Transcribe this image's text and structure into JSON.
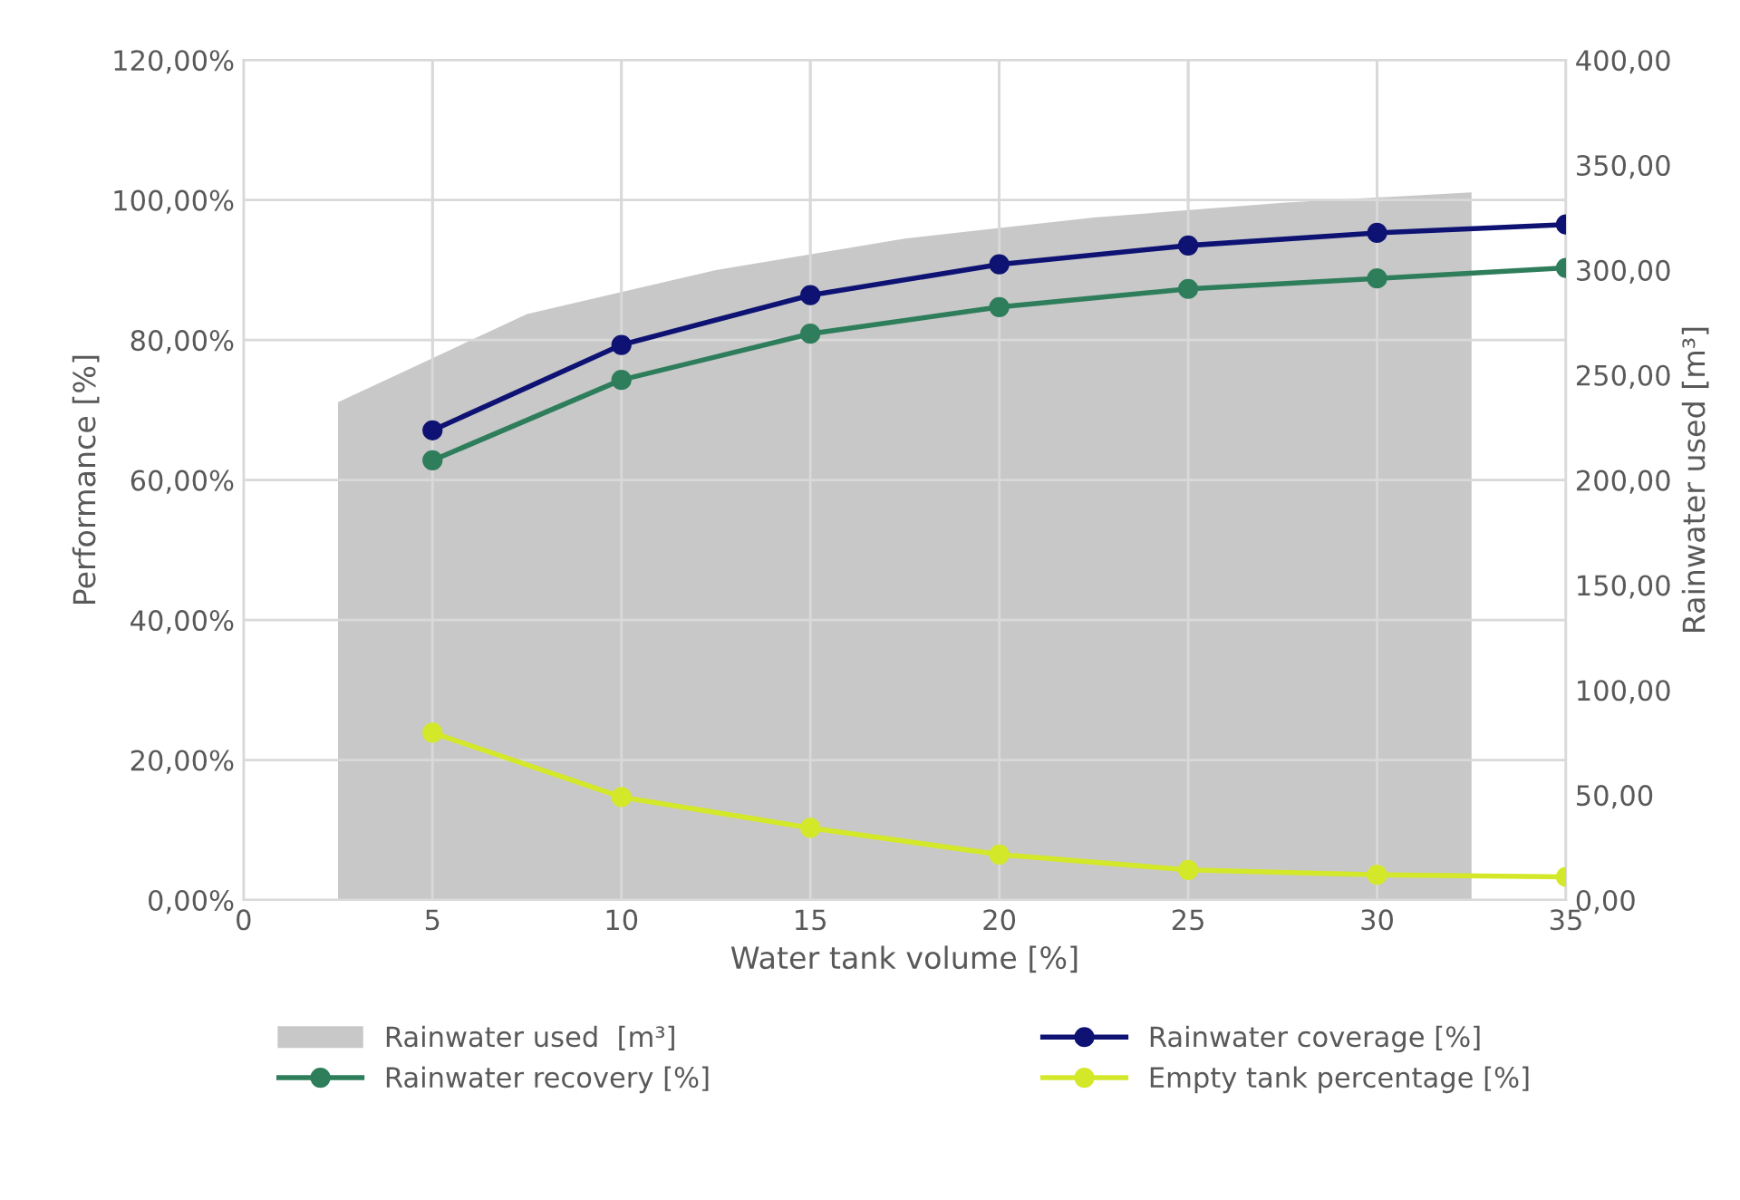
{
  "chart_data": {
    "type": "line",
    "xlabel": "Water tank volume [%]",
    "ylabel": "Performance [%]",
    "y2label": "Rainwater used [m³]",
    "x": [
      5,
      10,
      15,
      20,
      25,
      30,
      35
    ],
    "xlim": [
      0,
      35
    ],
    "xticks": [
      0,
      5,
      10,
      15,
      20,
      25,
      30,
      35
    ],
    "ylim": [
      0,
      120
    ],
    "yticks": [
      {
        "value": 0,
        "label": "0,00%"
      },
      {
        "value": 20,
        "label": "20,00%"
      },
      {
        "value": 40,
        "label": "40,00%"
      },
      {
        "value": 60,
        "label": "60,00%"
      },
      {
        "value": 80,
        "label": "80,00%"
      },
      {
        "value": 100,
        "label": "100,00%"
      },
      {
        "value": 120,
        "label": "120,00%"
      }
    ],
    "y2lim": [
      0,
      400
    ],
    "y2ticks": [
      {
        "value": 0,
        "label": "0,00"
      },
      {
        "value": 50,
        "label": "50,00"
      },
      {
        "value": 100,
        "label": "100,00"
      },
      {
        "value": 150,
        "label": "150,00"
      },
      {
        "value": 200,
        "label": "200,00"
      },
      {
        "value": 250,
        "label": "250,00"
      },
      {
        "value": 300,
        "label": "300,00"
      },
      {
        "value": 350,
        "label": "350,00"
      },
      {
        "value": 400,
        "label": "400,00"
      }
    ],
    "grid": true,
    "legend": "bottom",
    "marker": "circle",
    "series": [
      {
        "name": "Rainwater used  [m³]",
        "type": "area",
        "axis": "y2",
        "marker": "none",
        "color": "#c8c8c8",
        "x": [
          2.5,
          7.5,
          12.5,
          17.5,
          22.5,
          27.5,
          32.5
        ],
        "values": [
          237,
          279,
          300,
          315,
          325,
          332,
          337
        ]
      },
      {
        "name": "Rainwater coverage [%]",
        "color": "#0d1273",
        "values": [
          67.1,
          79.3,
          86.4,
          90.8,
          93.5,
          95.3,
          96.5
        ]
      },
      {
        "name": "Rainwater recovery [%]",
        "color": "#2e7d5b",
        "values": [
          62.8,
          74.3,
          80.9,
          84.7,
          87.3,
          88.8,
          90.3
        ]
      },
      {
        "name": "Empty tank percentage [%]",
        "color": "#d4e82a",
        "values": [
          23.9,
          14.7,
          10.3,
          6.5,
          4.3,
          3.6,
          3.3
        ]
      }
    ]
  }
}
